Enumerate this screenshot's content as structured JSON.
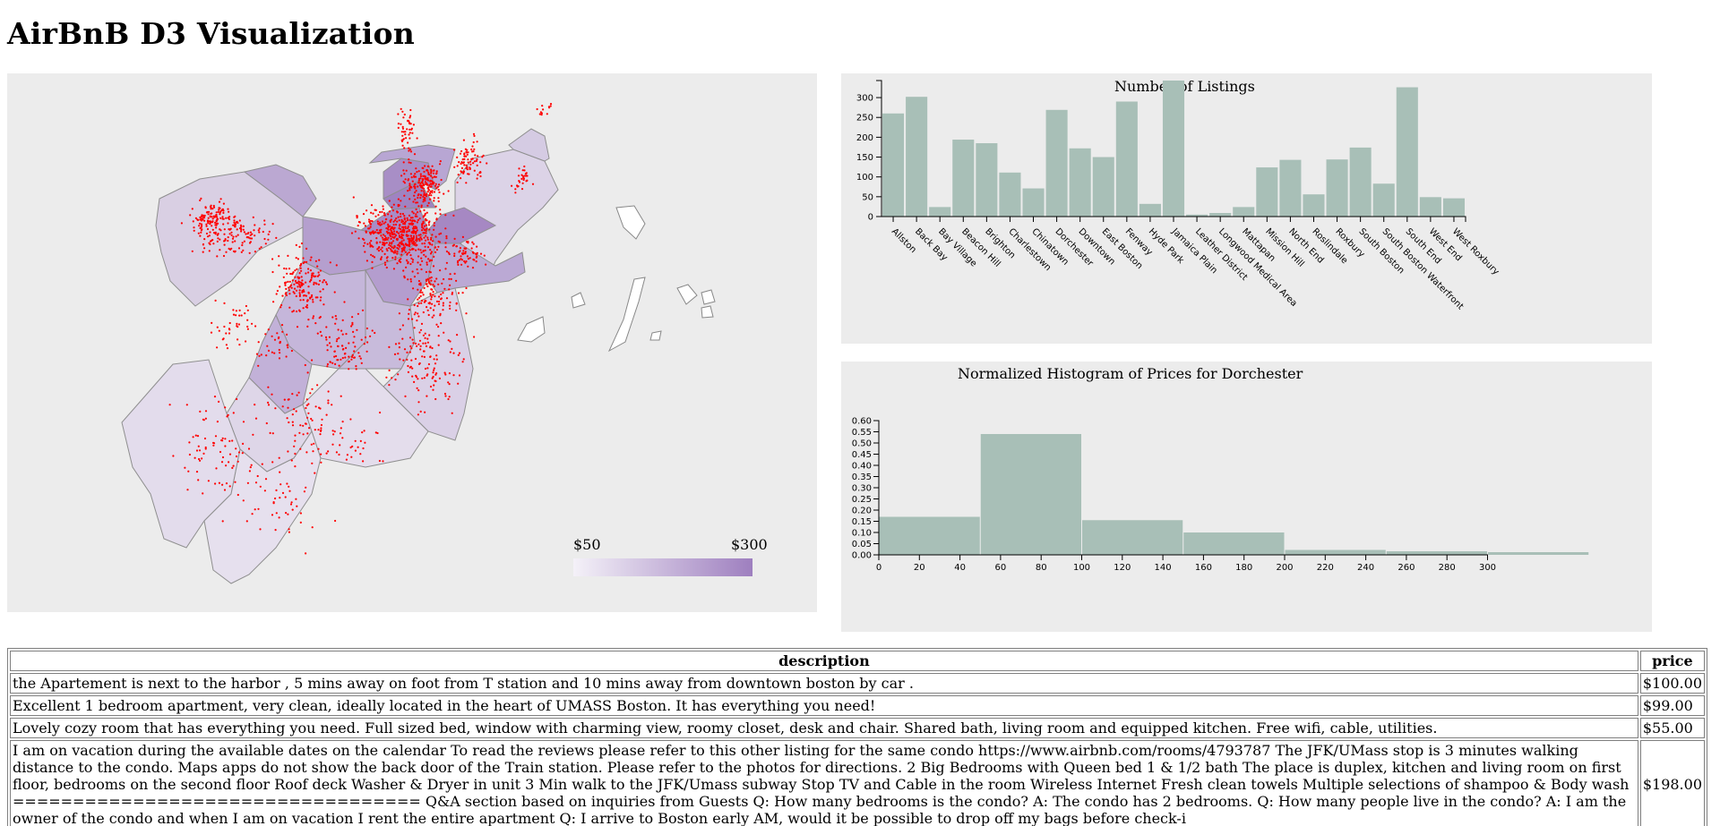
{
  "page_title": "AirBnB D3 Visualization",
  "map": {
    "legend": {
      "min_label": "$50",
      "max_label": "$300",
      "color_low": "#f1eef6",
      "color_high": "#9e7fbf"
    },
    "point_color": "#ff0000",
    "water_color": "#ffffff"
  },
  "chart_data": [
    {
      "type": "bar",
      "title": "Number of Listings",
      "categories": [
        "Allston",
        "Back Bay",
        "Bay Village",
        "Beacon Hill",
        "Brighton",
        "Charlestown",
        "Chinatown",
        "Dorchester",
        "Downtown",
        "East Boston",
        "Fenway",
        "Hyde Park",
        "Jamaica Plain",
        "Leather District",
        "Longwood Medical Area",
        "Mattapan",
        "Mission Hill",
        "North End",
        "Roslindale",
        "Roxbury",
        "South Boston",
        "South Boston Waterfront",
        "South End",
        "West End",
        "West Roxbury"
      ],
      "values": [
        260,
        302,
        24,
        194,
        185,
        111,
        71,
        269,
        172,
        150,
        290,
        32,
        343,
        5,
        9,
        24,
        124,
        143,
        56,
        144,
        174,
        83,
        326,
        49,
        46
      ],
      "yticks": [
        0,
        50,
        100,
        150,
        200,
        250,
        300
      ],
      "ylim": [
        0,
        343
      ],
      "bar_color": "#a8bfb7"
    },
    {
      "type": "bar",
      "title": "Normalized Histogram of Prices for Dorchester",
      "bins": [
        [
          0,
          50
        ],
        [
          50,
          100
        ],
        [
          100,
          150
        ],
        [
          150,
          200
        ],
        [
          200,
          250
        ],
        [
          250,
          300
        ],
        [
          300,
          350
        ]
      ],
      "values": [
        0.17,
        0.54,
        0.155,
        0.1,
        0.022,
        0.016,
        0.012
      ],
      "xticks": [
        0,
        20,
        40,
        60,
        80,
        100,
        120,
        140,
        160,
        180,
        200,
        220,
        240,
        260,
        280,
        300
      ],
      "yticks": [
        "0.00",
        "0.05",
        "0.10",
        "0.15",
        "0.20",
        "0.25",
        "0.30",
        "0.35",
        "0.40",
        "0.45",
        "0.50",
        "0.55",
        "0.60"
      ],
      "ylim": [
        0,
        0.6
      ],
      "bar_color": "#a8bfb7"
    }
  ],
  "table": {
    "headers": {
      "description": "description",
      "price": "price"
    },
    "rows": [
      {
        "description": "the Apartement is next to the harbor , 5 mins away on foot from T station and 10 mins away from downtown boston by car .",
        "price": "$100.00"
      },
      {
        "description": "Excellent 1 bedroom apartment, very clean, ideally located in the heart of UMASS Boston. It has everything you need!",
        "price": "$99.00"
      },
      {
        "description": "Lovely cozy room that has everything you need. Full sized bed, window with charming view, roomy closet, desk and chair. Shared bath, living room and equipped kitchen. Free wifi, cable, utilities.",
        "price": "$55.00"
      },
      {
        "description": "I am on vacation during the available dates on the calendar To read the reviews please refer to this other listing for the same condo https://www.airbnb.com/rooms/4793787 The JFK/UMass stop is 3 minutes walking distance to the condo. Maps apps do not show the back door of the Train station. Please refer to the photos for directions. 2 Big Bedrooms with Queen bed 1 & 1/2 bath The place is duplex, kitchen and living room on first floor, bedrooms on the second floor Roof deck Washer & Dryer in unit 3 Min walk to the JFK/Umass subway Stop TV and Cable in the room Wireless Internet Fresh clean towels Multiple selections of shampoo & Body wash ================================== Q&A section based on inquiries from Guests Q: How many bedrooms is the condo? A: The condo has 2 bedrooms. Q: How many people live in the condo? A: I am the owner of the condo and when I am on vacation I rent the entire apartment Q: I arrive to Boston early AM, would it be possible to drop off my bags before check-i",
        "price": "$198.00"
      }
    ]
  }
}
